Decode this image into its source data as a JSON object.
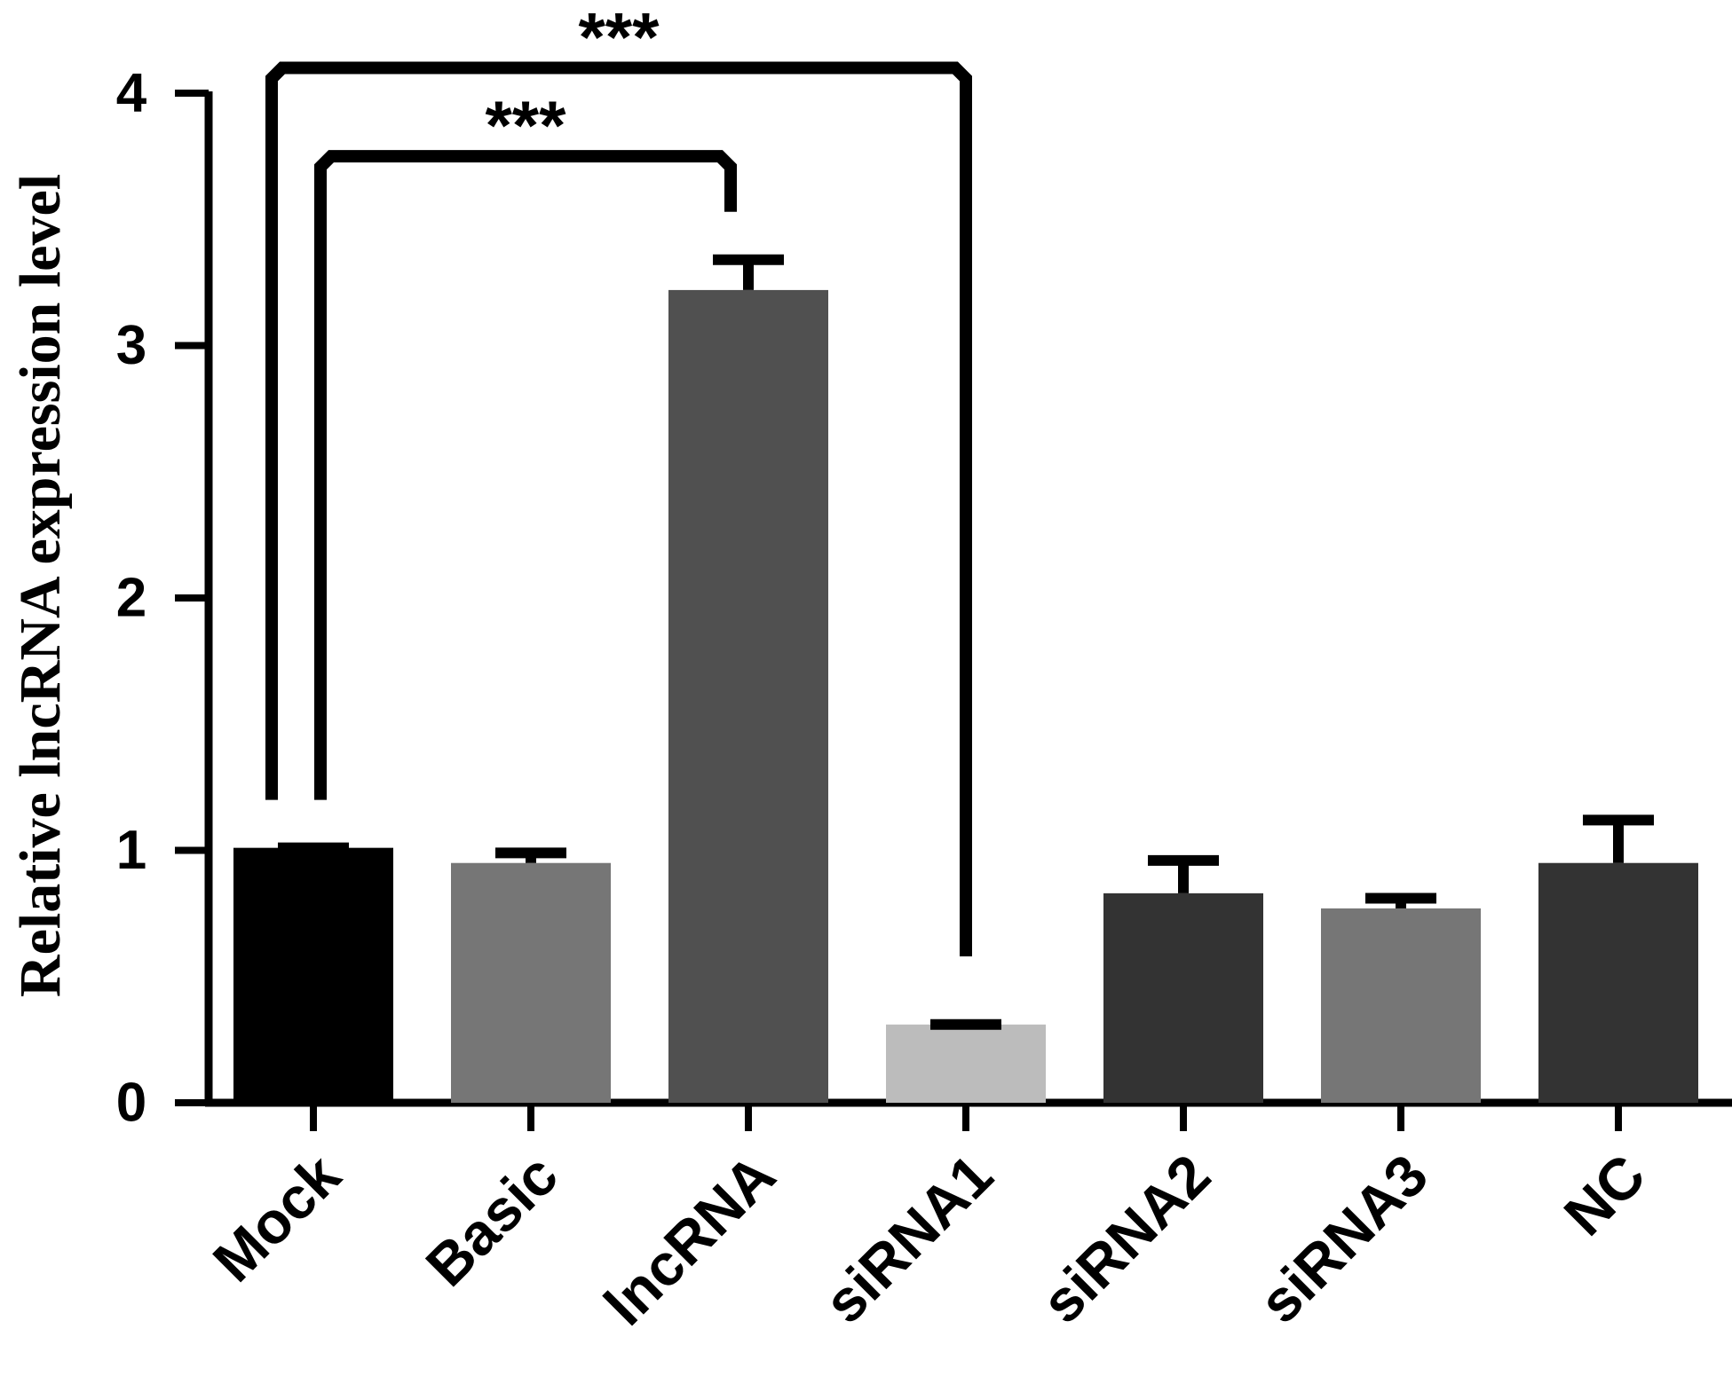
{
  "chart_data": {
    "type": "bar",
    "title": "",
    "xlabel": "",
    "ylabel": "Relative lncRNA expression level",
    "ylim": [
      0,
      4
    ],
    "yticks": [
      "0",
      "1",
      "2",
      "3",
      "4"
    ],
    "grid": false,
    "categories": [
      "Mock",
      "Basic",
      "lncRNA",
      "siRNA1",
      "siRNA2",
      "siRNA3",
      "NC"
    ],
    "values": [
      1.01,
      0.95,
      3.22,
      0.31,
      0.83,
      0.77,
      0.95
    ],
    "errors": [
      0.0,
      0.04,
      0.12,
      0.0,
      0.13,
      0.04,
      0.17
    ],
    "colors": [
      "#000000",
      "#767676",
      "#505050",
      "#bcbcbc",
      "#333333",
      "#767676",
      "#333333"
    ],
    "significance": [
      {
        "from": "Mock",
        "to": "lncRNA",
        "label": "***"
      },
      {
        "from": "Mock",
        "to": "siRNA1",
        "label": "***"
      }
    ]
  }
}
